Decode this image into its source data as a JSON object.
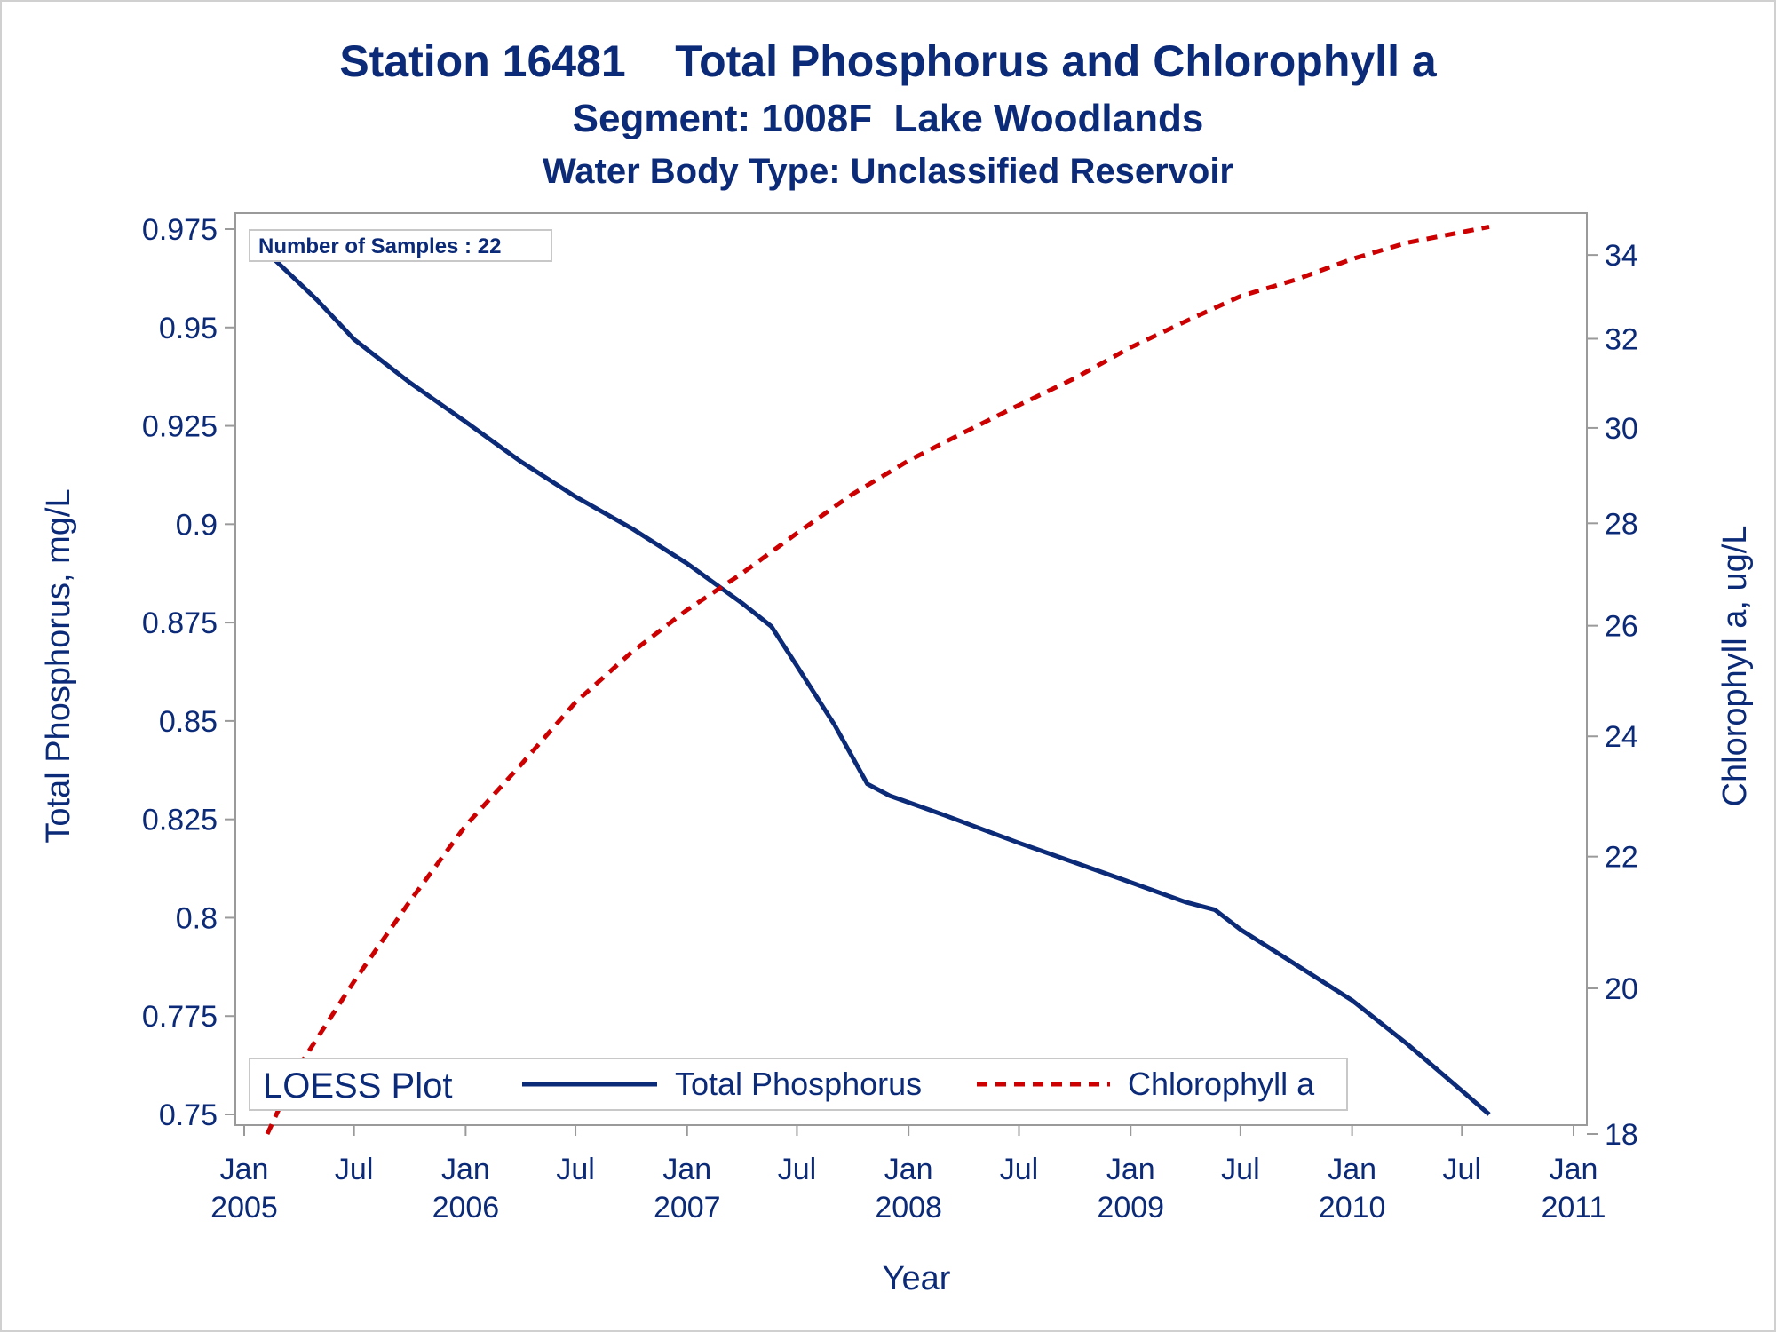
{
  "chart_data": {
    "type": "line",
    "title": "Station 16481    Total Phosphorus and Chlorophyll a",
    "subtitle": "Segment: 1008F  Lake Woodlands",
    "subtitle2": "Water Body Type: Unclassified Reservoir",
    "xlabel": "Year",
    "ylabel": "Total Phosphorus, mg/L",
    "y2label": "Chlorophyll a, ug/L",
    "inset_label": "Number of Samples : 22",
    "legend": {
      "title": "LOESS Plot",
      "position": "bottom-inside",
      "entries": [
        "Total Phosphorus",
        "Chlorophyll a"
      ]
    },
    "grid": false,
    "xlim": [
      "2005-01-01",
      "2011-01-01"
    ],
    "ylim": [
      0.745,
      0.98
    ],
    "y2lim": [
      18,
      35
    ],
    "y2_scale": "log",
    "x_ticks": [
      {
        "date": "2005-01-01",
        "l1": "Jan",
        "l2": "2005"
      },
      {
        "date": "2005-07-01",
        "l1": "Jul",
        "l2": ""
      },
      {
        "date": "2006-01-01",
        "l1": "Jan",
        "l2": "2006"
      },
      {
        "date": "2006-07-01",
        "l1": "Jul",
        "l2": ""
      },
      {
        "date": "2007-01-01",
        "l1": "Jan",
        "l2": "2007"
      },
      {
        "date": "2007-07-01",
        "l1": "Jul",
        "l2": ""
      },
      {
        "date": "2008-01-01",
        "l1": "Jan",
        "l2": "2008"
      },
      {
        "date": "2008-07-01",
        "l1": "Jul",
        "l2": ""
      },
      {
        "date": "2009-01-01",
        "l1": "Jan",
        "l2": "2009"
      },
      {
        "date": "2009-07-01",
        "l1": "Jul",
        "l2": ""
      },
      {
        "date": "2010-01-01",
        "l1": "Jan",
        "l2": "2010"
      },
      {
        "date": "2010-07-01",
        "l1": "Jul",
        "l2": ""
      },
      {
        "date": "2011-01-01",
        "l1": "Jan",
        "l2": "2011"
      }
    ],
    "y_ticks": [
      "0.75",
      "0.775",
      "0.8",
      "0.825",
      "0.85",
      "0.875",
      "0.9",
      "0.925",
      "0.95",
      "0.975"
    ],
    "y2_ticks": [
      "18",
      "20",
      "22",
      "24",
      "26",
      "28",
      "30",
      "32",
      "34"
    ],
    "series": [
      {
        "name": "Total Phosphorus",
        "axis": "left",
        "color": "#0b2a78",
        "style": "solid",
        "points": [
          [
            "2005-02-08",
            0.969
          ],
          [
            "2005-05-01",
            0.957
          ],
          [
            "2005-07-01",
            0.947
          ],
          [
            "2005-10-01",
            0.936
          ],
          [
            "2006-01-01",
            0.926
          ],
          [
            "2006-04-01",
            0.916
          ],
          [
            "2006-07-01",
            0.907
          ],
          [
            "2006-10-01",
            0.899
          ],
          [
            "2007-01-01",
            0.89
          ],
          [
            "2007-04-01",
            0.88
          ],
          [
            "2007-05-20",
            0.874
          ],
          [
            "2007-07-01",
            0.864
          ],
          [
            "2007-09-01",
            0.849
          ],
          [
            "2007-10-25",
            0.834
          ],
          [
            "2007-12-01",
            0.831
          ],
          [
            "2008-03-01",
            0.826
          ],
          [
            "2008-07-01",
            0.819
          ],
          [
            "2008-10-01",
            0.814
          ],
          [
            "2009-01-01",
            0.809
          ],
          [
            "2009-04-01",
            0.804
          ],
          [
            "2009-05-20",
            0.802
          ],
          [
            "2009-07-01",
            0.797
          ],
          [
            "2009-10-01",
            0.788
          ],
          [
            "2010-01-01",
            0.779
          ],
          [
            "2010-04-01",
            0.768
          ],
          [
            "2010-07-01",
            0.756
          ],
          [
            "2010-08-15",
            0.75
          ]
        ]
      },
      {
        "name": "Chlorophyll a",
        "axis": "right",
        "color": "#cc0000",
        "style": "dashed",
        "points": [
          [
            "2005-02-08",
            18.0
          ],
          [
            "2005-04-01",
            18.9
          ],
          [
            "2005-07-01",
            20.1
          ],
          [
            "2005-10-01",
            21.3
          ],
          [
            "2006-01-01",
            22.5
          ],
          [
            "2006-04-01",
            23.5
          ],
          [
            "2006-07-01",
            24.6
          ],
          [
            "2006-10-01",
            25.5
          ],
          [
            "2007-01-01",
            26.3
          ],
          [
            "2007-04-01",
            27.0
          ],
          [
            "2007-07-01",
            27.8
          ],
          [
            "2007-10-01",
            28.6
          ],
          [
            "2008-01-01",
            29.3
          ],
          [
            "2008-04-01",
            29.9
          ],
          [
            "2008-07-01",
            30.5
          ],
          [
            "2008-10-01",
            31.1
          ],
          [
            "2009-01-01",
            31.8
          ],
          [
            "2009-04-01",
            32.4
          ],
          [
            "2009-07-01",
            33.0
          ],
          [
            "2009-10-01",
            33.4
          ],
          [
            "2010-01-01",
            33.9
          ],
          [
            "2010-04-01",
            34.3
          ],
          [
            "2010-08-15",
            34.7
          ]
        ]
      }
    ]
  }
}
